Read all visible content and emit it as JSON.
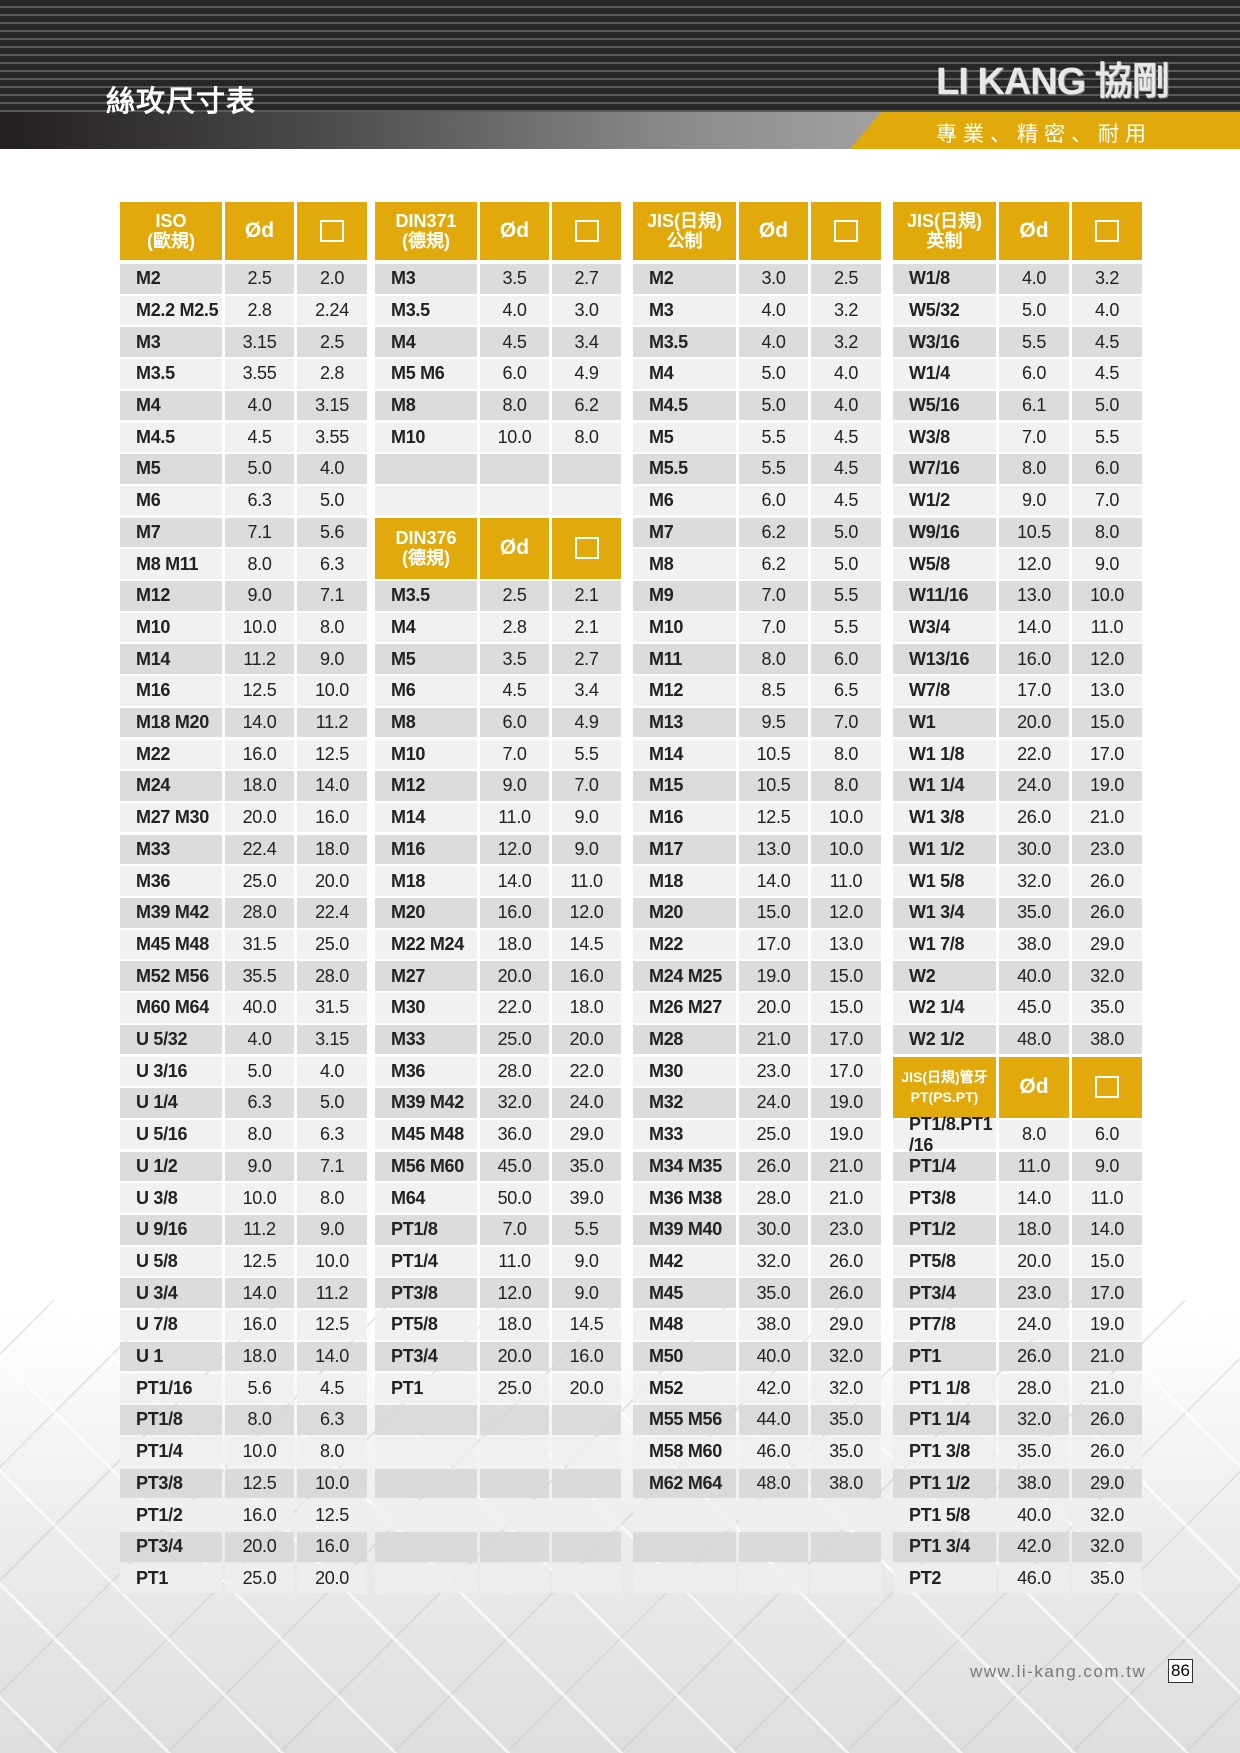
{
  "header": {
    "title": "絲攻尺寸表",
    "brand": "LI KANG 協剛",
    "tagline": "專業、精密、耐用"
  },
  "footer": {
    "url": "www.li-kang.com.tw",
    "page": "86"
  },
  "colors": {
    "accent": "#e2a90c",
    "row_dark": "#d6d6d6",
    "row_light": "#eeeeee"
  },
  "icons": {
    "square_column": "square-outline-icon"
  },
  "tables": [
    {
      "label": "ISO\n(歐規)",
      "col_d": "Ød",
      "rows": [
        [
          "M2",
          "2.5",
          "2.0"
        ],
        [
          "M2.2 M2.5",
          "2.8",
          "2.24"
        ],
        [
          "M3",
          "3.15",
          "2.5"
        ],
        [
          "M3.5",
          "3.55",
          "2.8"
        ],
        [
          "M4",
          "4.0",
          "3.15"
        ],
        [
          "M4.5",
          "4.5",
          "3.55"
        ],
        [
          "M5",
          "5.0",
          "4.0"
        ],
        [
          "M6",
          "6.3",
          "5.0"
        ],
        [
          "M7",
          "7.1",
          "5.6"
        ],
        [
          "M8 M11",
          "8.0",
          "6.3"
        ],
        [
          "M12",
          "9.0",
          "7.1"
        ],
        [
          "M10",
          "10.0",
          "8.0"
        ],
        [
          "M14",
          "11.2",
          "9.0"
        ],
        [
          "M16",
          "12.5",
          "10.0"
        ],
        [
          "M18 M20",
          "14.0",
          "11.2"
        ],
        [
          "M22",
          "16.0",
          "12.5"
        ],
        [
          "M24",
          "18.0",
          "14.0"
        ],
        [
          "M27 M30",
          "20.0",
          "16.0"
        ],
        [
          "M33",
          "22.4",
          "18.0"
        ],
        [
          "M36",
          "25.0",
          "20.0"
        ],
        [
          "M39 M42",
          "28.0",
          "22.4"
        ],
        [
          "M45 M48",
          "31.5",
          "25.0"
        ],
        [
          "M52 M56",
          "35.5",
          "28.0"
        ],
        [
          "M60 M64",
          "40.0",
          "31.5"
        ],
        [
          "U 5/32",
          "4.0",
          "3.15"
        ],
        [
          "U 3/16",
          "5.0",
          "4.0"
        ],
        [
          "U 1/4",
          "6.3",
          "5.0"
        ],
        [
          "U 5/16",
          "8.0",
          "6.3"
        ],
        [
          "U 1/2",
          "9.0",
          "7.1"
        ],
        [
          "U 3/8",
          "10.0",
          "8.0"
        ],
        [
          "U 9/16",
          "11.2",
          "9.0"
        ],
        [
          "U 5/8",
          "12.5",
          "10.0"
        ],
        [
          "U 3/4",
          "14.0",
          "11.2"
        ],
        [
          "U 7/8",
          "16.0",
          "12.5"
        ],
        [
          "U 1",
          "18.0",
          "14.0"
        ],
        [
          "PT1/16",
          "5.6",
          "4.5"
        ],
        [
          "PT1/8",
          "8.0",
          "6.3"
        ],
        [
          "PT1/4",
          "10.0",
          "8.0"
        ],
        [
          "PT3/8",
          "12.5",
          "10.0"
        ],
        [
          "PT1/2",
          "16.0",
          "12.5"
        ],
        [
          "PT3/4",
          "20.0",
          "16.0"
        ],
        [
          "PT1",
          "25.0",
          "20.0"
        ]
      ]
    },
    {
      "label": "DIN371\n(德規)",
      "col_d": "Ød",
      "rows": [
        [
          "M3",
          "3.5",
          "2.7"
        ],
        [
          "M3.5",
          "4.0",
          "3.0"
        ],
        [
          "M4",
          "4.5",
          "3.4"
        ],
        [
          "M5 M6",
          "6.0",
          "4.9"
        ],
        [
          "M8",
          "8.0",
          "6.2"
        ],
        [
          "M10",
          "10.0",
          "8.0"
        ]
      ]
    },
    {
      "label": "DIN376\n(德規)",
      "col_d": "Ød",
      "rows": [
        [
          "M3.5",
          "2.5",
          "2.1"
        ],
        [
          "M4",
          "2.8",
          "2.1"
        ],
        [
          "M5",
          "3.5",
          "2.7"
        ],
        [
          "M6",
          "4.5",
          "3.4"
        ],
        [
          "M8",
          "6.0",
          "4.9"
        ],
        [
          "M10",
          "7.0",
          "5.5"
        ],
        [
          "M12",
          "9.0",
          "7.0"
        ],
        [
          "M14",
          "11.0",
          "9.0"
        ],
        [
          "M16",
          "12.0",
          "9.0"
        ],
        [
          "M18",
          "14.0",
          "11.0"
        ],
        [
          "M20",
          "16.0",
          "12.0"
        ],
        [
          "M22 M24",
          "18.0",
          "14.5"
        ],
        [
          "M27",
          "20.0",
          "16.0"
        ],
        [
          "M30",
          "22.0",
          "18.0"
        ],
        [
          "M33",
          "25.0",
          "20.0"
        ],
        [
          "M36",
          "28.0",
          "22.0"
        ],
        [
          "M39 M42",
          "32.0",
          "24.0"
        ],
        [
          "M45 M48",
          "36.0",
          "29.0"
        ],
        [
          "M56 M60",
          "45.0",
          "35.0"
        ],
        [
          "M64",
          "50.0",
          "39.0"
        ],
        [
          "PT1/8",
          "7.0",
          "5.5"
        ],
        [
          "PT1/4",
          "11.0",
          "9.0"
        ],
        [
          "PT3/8",
          "12.0",
          "9.0"
        ],
        [
          "PT5/8",
          "18.0",
          "14.5"
        ],
        [
          "PT3/4",
          "20.0",
          "16.0"
        ],
        [
          "PT1",
          "25.0",
          "20.0"
        ]
      ]
    },
    {
      "label": "JIS(日規)\n公制",
      "col_d": "Ød",
      "rows": [
        [
          "M2",
          "3.0",
          "2.5"
        ],
        [
          "M3",
          "4.0",
          "3.2"
        ],
        [
          "M3.5",
          "4.0",
          "3.2"
        ],
        [
          "M4",
          "5.0",
          "4.0"
        ],
        [
          "M4.5",
          "5.0",
          "4.0"
        ],
        [
          "M5",
          "5.5",
          "4.5"
        ],
        [
          "M5.5",
          "5.5",
          "4.5"
        ],
        [
          "M6",
          "6.0",
          "4.5"
        ],
        [
          "M7",
          "6.2",
          "5.0"
        ],
        [
          "M8",
          "6.2",
          "5.0"
        ],
        [
          "M9",
          "7.0",
          "5.5"
        ],
        [
          "M10",
          "7.0",
          "5.5"
        ],
        [
          "M11",
          "8.0",
          "6.0"
        ],
        [
          "M12",
          "8.5",
          "6.5"
        ],
        [
          "M13",
          "9.5",
          "7.0"
        ],
        [
          "M14",
          "10.5",
          "8.0"
        ],
        [
          "M15",
          "10.5",
          "8.0"
        ],
        [
          "M16",
          "12.5",
          "10.0"
        ],
        [
          "M17",
          "13.0",
          "10.0"
        ],
        [
          "M18",
          "14.0",
          "11.0"
        ],
        [
          "M20",
          "15.0",
          "12.0"
        ],
        [
          "M22",
          "17.0",
          "13.0"
        ],
        [
          "M24 M25",
          "19.0",
          "15.0"
        ],
        [
          "M26 M27",
          "20.0",
          "15.0"
        ],
        [
          "M28",
          "21.0",
          "17.0"
        ],
        [
          "M30",
          "23.0",
          "17.0"
        ],
        [
          "M32",
          "24.0",
          "19.0"
        ],
        [
          "M33",
          "25.0",
          "19.0"
        ],
        [
          "M34 M35",
          "26.0",
          "21.0"
        ],
        [
          "M36 M38",
          "28.0",
          "21.0"
        ],
        [
          "M39 M40",
          "30.0",
          "23.0"
        ],
        [
          "M42",
          "32.0",
          "26.0"
        ],
        [
          "M45",
          "35.0",
          "26.0"
        ],
        [
          "M48",
          "38.0",
          "29.0"
        ],
        [
          "M50",
          "40.0",
          "32.0"
        ],
        [
          "M52",
          "42.0",
          "32.0"
        ],
        [
          "M55 M56",
          "44.0",
          "35.0"
        ],
        [
          "M58 M60",
          "46.0",
          "35.0"
        ],
        [
          "M62 M64",
          "48.0",
          "38.0"
        ]
      ]
    },
    {
      "label": "JIS(日規)\n英制",
      "col_d": "Ød",
      "rows": [
        [
          "W1/8",
          "4.0",
          "3.2"
        ],
        [
          "W5/32",
          "5.0",
          "4.0"
        ],
        [
          "W3/16",
          "5.5",
          "4.5"
        ],
        [
          "W1/4",
          "6.0",
          "4.5"
        ],
        [
          "W5/16",
          "6.1",
          "5.0"
        ],
        [
          "W3/8",
          "7.0",
          "5.5"
        ],
        [
          "W7/16",
          "8.0",
          "6.0"
        ],
        [
          "W1/2",
          "9.0",
          "7.0"
        ],
        [
          "W9/16",
          "10.5",
          "8.0"
        ],
        [
          "W5/8",
          "12.0",
          "9.0"
        ],
        [
          "W11/16",
          "13.0",
          "10.0"
        ],
        [
          "W3/4",
          "14.0",
          "11.0"
        ],
        [
          "W13/16",
          "16.0",
          "12.0"
        ],
        [
          "W7/8",
          "17.0",
          "13.0"
        ],
        [
          "W1",
          "20.0",
          "15.0"
        ],
        [
          "W1 1/8",
          "22.0",
          "17.0"
        ],
        [
          "W1 1/4",
          "24.0",
          "19.0"
        ],
        [
          "W1 3/8",
          "26.0",
          "21.0"
        ],
        [
          "W1 1/2",
          "30.0",
          "23.0"
        ],
        [
          "W1 5/8",
          "32.0",
          "26.0"
        ],
        [
          "W1 3/4",
          "35.0",
          "26.0"
        ],
        [
          "W1 7/8",
          "38.0",
          "29.0"
        ],
        [
          "W2",
          "40.0",
          "32.0"
        ],
        [
          "W2 1/4",
          "45.0",
          "35.0"
        ],
        [
          "W2 1/2",
          "48.0",
          "38.0"
        ]
      ]
    },
    {
      "label": "JIS(日規)管牙\nPT(PS.PT)",
      "col_d": "Ød",
      "rows": [
        [
          "PT1/8.PT1 /16",
          "8.0",
          "6.0"
        ],
        [
          "PT1/4",
          "11.0",
          "9.0"
        ],
        [
          "PT3/8",
          "14.0",
          "11.0"
        ],
        [
          "PT1/2",
          "18.0",
          "14.0"
        ],
        [
          "PT5/8",
          "20.0",
          "15.0"
        ],
        [
          "PT3/4",
          "23.0",
          "17.0"
        ],
        [
          "PT7/8",
          "24.0",
          "19.0"
        ],
        [
          "PT1",
          "26.0",
          "21.0"
        ],
        [
          "PT1 1/8",
          "28.0",
          "21.0"
        ],
        [
          "PT1 1/4",
          "32.0",
          "26.0"
        ],
        [
          "PT1 3/8",
          "35.0",
          "26.0"
        ],
        [
          "PT1 1/2",
          "38.0",
          "29.0"
        ],
        [
          "PT1 5/8",
          "40.0",
          "32.0"
        ],
        [
          "PT1 3/4",
          "42.0",
          "32.0"
        ],
        [
          "PT2",
          "46.0",
          "35.0"
        ]
      ]
    }
  ]
}
